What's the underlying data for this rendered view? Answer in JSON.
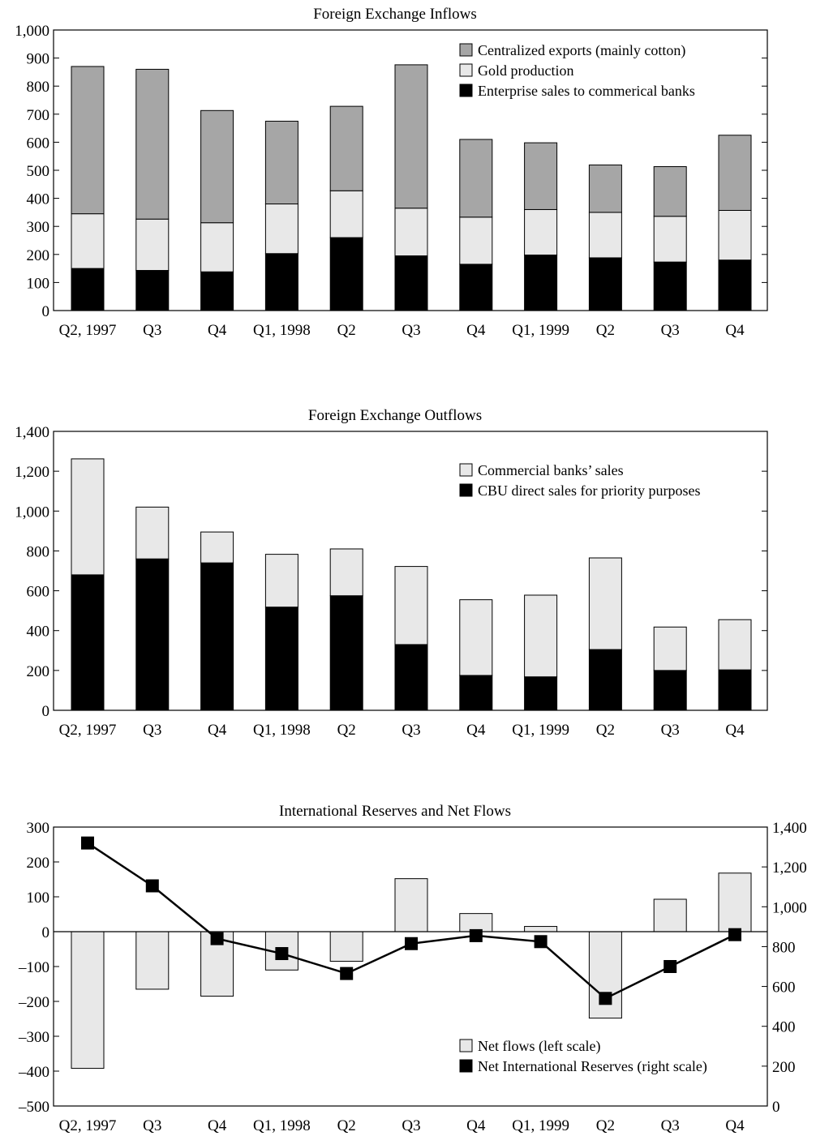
{
  "colors": {
    "dark_gray": "#a6a6a6",
    "light_gray": "#e8e8e8",
    "black": "#000000"
  },
  "chart_data": [
    {
      "type": "bar",
      "stacked": true,
      "title": "Foreign Exchange Inflows",
      "categories": [
        "Q2, 1997",
        "Q3",
        "Q4",
        "Q1, 1998",
        "Q2",
        "Q3",
        "Q4",
        "Q1, 1999",
        "Q2",
        "Q3",
        "Q4"
      ],
      "ylim": [
        0,
        1000
      ],
      "yticks": [
        "0",
        "100",
        "200",
        "300",
        "400",
        "500",
        "600",
        "700",
        "800",
        "900",
        "1,000"
      ],
      "legend_position": "top-right",
      "series": [
        {
          "name": "Enterprise sales to commerical banks",
          "color": "#000000",
          "values": [
            150,
            143,
            138,
            203,
            260,
            195,
            165,
            198,
            188,
            173,
            180
          ]
        },
        {
          "name": "Gold production",
          "color": "#e8e8e8",
          "values": [
            195,
            183,
            175,
            177,
            167,
            170,
            168,
            162,
            162,
            163,
            177
          ]
        },
        {
          "name": "Centralized exports (mainly cotton)",
          "color": "#a6a6a6",
          "values": [
            525,
            534,
            400,
            295,
            301,
            511,
            277,
            238,
            169,
            177,
            268
          ]
        }
      ],
      "legend_order": [
        2,
        1,
        0
      ]
    },
    {
      "type": "bar",
      "stacked": true,
      "title": "Foreign Exchange Outflows",
      "categories": [
        "Q2, 1997",
        "Q3",
        "Q4",
        "Q1, 1998",
        "Q2",
        "Q3",
        "Q4",
        "Q1, 1999",
        "Q2",
        "Q3",
        "Q4"
      ],
      "ylim": [
        0,
        1400
      ],
      "yticks": [
        "0",
        "200",
        "400",
        "600",
        "800",
        "1,000",
        "1,200",
        "1,400"
      ],
      "legend_position": "top-right",
      "series": [
        {
          "name": "CBU direct sales for priority purposes",
          "color": "#000000",
          "values": [
            680,
            760,
            740,
            518,
            575,
            330,
            175,
            168,
            305,
            200,
            203
          ]
        },
        {
          "name": "Commercial banks’ sales",
          "color": "#e8e8e8",
          "values": [
            582,
            260,
            155,
            265,
            235,
            392,
            380,
            410,
            460,
            218,
            252
          ]
        }
      ],
      "legend_order": [
        1,
        0
      ]
    },
    {
      "type": "bar",
      "title": "International Reserves and Net Flows",
      "categories": [
        "Q2, 1997",
        "Q3",
        "Q4",
        "Q1, 1998",
        "Q2",
        "Q3",
        "Q4",
        "Q1, 1999",
        "Q2",
        "Q3",
        "Q4"
      ],
      "ylim": [
        -500,
        300
      ],
      "yticks": [
        "–500",
        "–400",
        "–300",
        "–200",
        "–100",
        "0",
        "100",
        "200",
        "300"
      ],
      "y2lim": [
        0,
        1400
      ],
      "y2ticks": [
        "0",
        "200",
        "400",
        "600",
        "800",
        "1,000",
        "1,200",
        "1,400"
      ],
      "legend_position": "bottom-right",
      "series": [
        {
          "name": "Net flows (left scale)",
          "kind": "bar",
          "axis": "left",
          "color": "#e8e8e8",
          "values": [
            -392,
            -165,
            -185,
            -110,
            -85,
            152,
            52,
            15,
            -248,
            93,
            168
          ]
        },
        {
          "name": "Net International Reserves (right scale)",
          "kind": "line",
          "axis": "right",
          "color": "#000000",
          "values": [
            1320,
            1105,
            840,
            765,
            665,
            815,
            855,
            825,
            540,
            700,
            860
          ]
        }
      ]
    }
  ]
}
